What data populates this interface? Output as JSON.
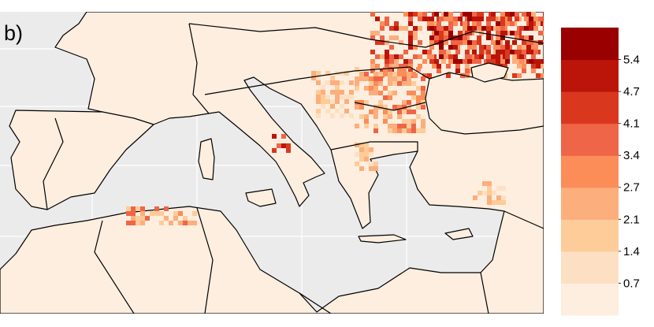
{
  "panel_label": "b)",
  "legend": {
    "ticks": [
      0.7,
      1.4,
      2.1,
      2.7,
      3.4,
      4.1,
      4.7,
      5.4
    ],
    "colors": [
      "#fdeedf",
      "#fde0c3",
      "#fdcc98",
      "#fcae7c",
      "#fc8c58",
      "#ef6548",
      "#d9381f",
      "#bb1408",
      "#990000"
    ]
  }
}
